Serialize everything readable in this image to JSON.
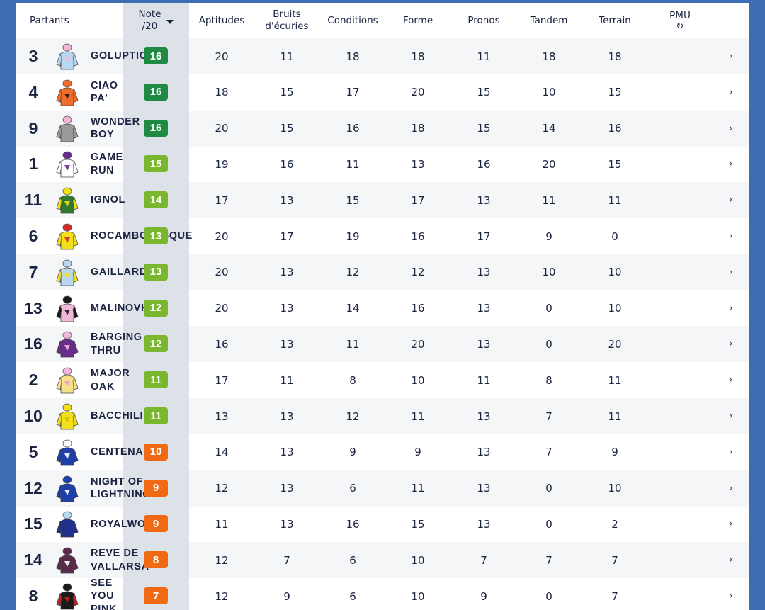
{
  "header": {
    "partants": "Partants",
    "note_line1": "Note",
    "note_line2": "/20",
    "aptitudes": "Aptitudes",
    "bruits_line1": "Bruits",
    "bruits_line2": "d'écuries",
    "conditions": "Conditions",
    "forme": "Forme",
    "pronos": "Pronos",
    "tandem": "Tandem",
    "terrain": "Terrain",
    "pmu": "PMU",
    "pmu_icon": "refresh-icon"
  },
  "colors": {
    "dark_green": "#1e8a43",
    "light_green": "#7ab72f",
    "orange": "#f06a14"
  },
  "rows": [
    {
      "num": "3",
      "name": "GOLUPTIO",
      "note": "16",
      "note_color": "#1e8a43",
      "aptitudes": "20",
      "bruits": "11",
      "conditions": "18",
      "forme": "18",
      "pronos": "11",
      "tandem": "18",
      "terrain": "18",
      "silk": {
        "body": "#b8d8f2",
        "sleeves": "#b8d8f2",
        "cap": "#f0b8d8",
        "accent": "#f0b8d8"
      }
    },
    {
      "num": "4",
      "name": "CIAO\nPA'",
      "note": "16",
      "note_color": "#1e8a43",
      "aptitudes": "18",
      "bruits": "15",
      "conditions": "17",
      "forme": "20",
      "pronos": "15",
      "tandem": "10",
      "terrain": "15",
      "silk": {
        "body": "#f26c2a",
        "sleeves": "#f26c2a",
        "cap": "#f26c2a",
        "accent": "#1a1a1a"
      }
    },
    {
      "num": "9",
      "name": "WONDER\nBOY",
      "note": "16",
      "note_color": "#1e8a43",
      "aptitudes": "20",
      "bruits": "15",
      "conditions": "16",
      "forme": "18",
      "pronos": "15",
      "tandem": "14",
      "terrain": "16",
      "silk": {
        "body": "#9a9a9a",
        "sleeves": "#9a9a9a",
        "cap": "#f0b8d8",
        "accent": "#9a9a9a"
      }
    },
    {
      "num": "1",
      "name": "GAME\nRUN",
      "note": "15",
      "note_color": "#7ab72f",
      "aptitudes": "19",
      "bruits": "16",
      "conditions": "11",
      "forme": "13",
      "pronos": "16",
      "tandem": "20",
      "terrain": "15",
      "silk": {
        "body": "#ffffff",
        "sleeves": "#ffffff",
        "cap": "#6a2c8a",
        "accent": "#6a2c8a"
      }
    },
    {
      "num": "11",
      "name": "IGNOL",
      "note": "14",
      "note_color": "#7ab72f",
      "aptitudes": "17",
      "bruits": "13",
      "conditions": "15",
      "forme": "17",
      "pronos": "13",
      "tandem": "11",
      "terrain": "11",
      "silk": {
        "body": "#2f7a2f",
        "sleeves": "#f2e01a",
        "cap": "#f2e01a",
        "accent": "#f2e01a"
      }
    },
    {
      "num": "6",
      "name": "ROCAMBOLESQUE",
      "note": "13",
      "note_color": "#7ab72f",
      "aptitudes": "20",
      "bruits": "17",
      "conditions": "19",
      "forme": "16",
      "pronos": "17",
      "tandem": "9",
      "terrain": "0",
      "silk": {
        "body": "#f2e01a",
        "sleeves": "#f2e01a",
        "cap": "#d42a2a",
        "accent": "#d42a2a"
      }
    },
    {
      "num": "7",
      "name": "GAILLARD",
      "note": "13",
      "note_color": "#7ab72f",
      "aptitudes": "20",
      "bruits": "13",
      "conditions": "12",
      "forme": "12",
      "pronos": "13",
      "tandem": "10",
      "terrain": "10",
      "silk": {
        "body": "#b8d8f2",
        "sleeves": "#f2e01a",
        "cap": "#b8d8f2",
        "accent": "#f2e01a"
      }
    },
    {
      "num": "13",
      "name": "MALINOVKA",
      "note": "12",
      "note_color": "#7ab72f",
      "aptitudes": "20",
      "bruits": "13",
      "conditions": "14",
      "forme": "16",
      "pronos": "13",
      "tandem": "0",
      "terrain": "10",
      "silk": {
        "body": "#f0b8d8",
        "sleeves": "#1a1a1a",
        "cap": "#1a1a1a",
        "accent": "#1a1a1a"
      }
    },
    {
      "num": "16",
      "name": "BARGING\nTHRU",
      "note": "12",
      "note_color": "#7ab72f",
      "aptitudes": "16",
      "bruits": "13",
      "conditions": "11",
      "forme": "20",
      "pronos": "13",
      "tandem": "0",
      "terrain": "20",
      "silk": {
        "body": "#6a2c8a",
        "sleeves": "#6a2c8a",
        "cap": "#f0b8d8",
        "accent": "#f0b8d8"
      }
    },
    {
      "num": "2",
      "name": "MAJOR\nOAK",
      "note": "11",
      "note_color": "#7ab72f",
      "aptitudes": "17",
      "bruits": "11",
      "conditions": "8",
      "forme": "10",
      "pronos": "11",
      "tandem": "8",
      "terrain": "11",
      "silk": {
        "body": "#f7e08a",
        "sleeves": "#f7e08a",
        "cap": "#f0b8d8",
        "accent": "#f0a0c0"
      }
    },
    {
      "num": "10",
      "name": "BACCHILIDE",
      "note": "11",
      "note_color": "#7ab72f",
      "aptitudes": "13",
      "bruits": "13",
      "conditions": "12",
      "forme": "11",
      "pronos": "13",
      "tandem": "7",
      "terrain": "11",
      "silk": {
        "body": "#f2e01a",
        "sleeves": "#f2e01a",
        "cap": "#f2e01a",
        "accent": "#d4c010"
      }
    },
    {
      "num": "5",
      "name": "CENTENAIRE",
      "note": "10",
      "note_color": "#f06a14",
      "aptitudes": "14",
      "bruits": "13",
      "conditions": "9",
      "forme": "9",
      "pronos": "13",
      "tandem": "7",
      "terrain": "9",
      "silk": {
        "body": "#1f3fa8",
        "sleeves": "#1f3fa8",
        "cap": "#ffffff",
        "accent": "#ffffff"
      }
    },
    {
      "num": "12",
      "name": "NIGHT OF\nLIGHTNING",
      "note": "9",
      "note_color": "#f06a14",
      "aptitudes": "12",
      "bruits": "13",
      "conditions": "6",
      "forme": "11",
      "pronos": "13",
      "tandem": "0",
      "terrain": "10",
      "silk": {
        "body": "#1f3fa8",
        "sleeves": "#1f3fa8",
        "cap": "#1f3fa8",
        "accent": "#ffffff"
      }
    },
    {
      "num": "15",
      "name": "ROYALWOOD",
      "note": "9",
      "note_color": "#f06a14",
      "aptitudes": "11",
      "bruits": "13",
      "conditions": "16",
      "forme": "15",
      "pronos": "13",
      "tandem": "0",
      "terrain": "2",
      "silk": {
        "body": "#1f2f8a",
        "sleeves": "#1f2f8a",
        "cap": "#b8d8f2",
        "accent": "#1f2f8a"
      }
    },
    {
      "num": "14",
      "name": "REVE DE\nVALLARSA",
      "note": "8",
      "note_color": "#f06a14",
      "aptitudes": "12",
      "bruits": "7",
      "conditions": "6",
      "forme": "10",
      "pronos": "7",
      "tandem": "7",
      "terrain": "7",
      "silk": {
        "body": "#5a2a4a",
        "sleeves": "#5a2a4a",
        "cap": "#5a2a4a",
        "accent": "#ffffff"
      }
    },
    {
      "num": "8",
      "name": "SEE\nYOU\nPINK",
      "note": "7",
      "note_color": "#f06a14",
      "aptitudes": "12",
      "bruits": "9",
      "conditions": "6",
      "forme": "10",
      "pronos": "9",
      "tandem": "0",
      "terrain": "7",
      "silk": {
        "body": "#1a1a1a",
        "sleeves": "#c42020",
        "cap": "#1a1a1a",
        "accent": "#c42020"
      }
    }
  ]
}
